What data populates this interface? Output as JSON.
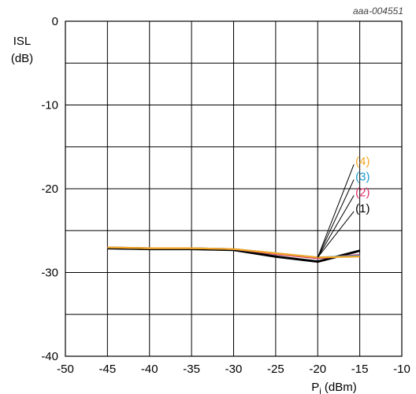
{
  "chart_data": {
    "type": "line",
    "figure_code": "aaa-004551",
    "ylabel_line1": "ISL",
    "ylabel_line2": "(dB)",
    "xlabel_main": "P",
    "xlabel_sub": "i",
    "xlabel_unit": " (dBm)",
    "xlim": [
      -50,
      -10
    ],
    "ylim": [
      -40,
      0
    ],
    "xticks": [
      -50,
      -45,
      -40,
      -35,
      -30,
      -25,
      -20,
      -15,
      -10
    ],
    "yticks": [
      0,
      -10,
      -20,
      -30,
      -40
    ],
    "x_grid_step": 5,
    "y_grid_step": 5,
    "grid": true,
    "series": [
      {
        "name": "(1)",
        "color": "#000000",
        "x": [
          -45,
          -40,
          -35,
          -30,
          -25,
          -20,
          -15
        ],
        "y": [
          -27.1,
          -27.2,
          -27.2,
          -27.3,
          -28.1,
          -28.7,
          -27.4
        ]
      },
      {
        "name": "(2)",
        "color": "#e0306a",
        "x": [
          -45,
          -40,
          -35,
          -30,
          -25,
          -20,
          -15
        ],
        "y": [
          -27.0,
          -27.1,
          -27.1,
          -27.2,
          -27.8,
          -28.3,
          -27.9
        ]
      },
      {
        "name": "(3)",
        "color": "#1a9ad0",
        "x": [
          -45,
          -40,
          -35,
          -30,
          -25,
          -20,
          -15
        ],
        "y": [
          -27.0,
          -27.1,
          -27.1,
          -27.2,
          -27.7,
          -28.2,
          -28.0
        ]
      },
      {
        "name": "(4)",
        "color": "#f5a623",
        "x": [
          -45,
          -40,
          -35,
          -30,
          -25,
          -20,
          -15
        ],
        "y": [
          -27.0,
          -27.1,
          -27.1,
          -27.2,
          -27.7,
          -28.2,
          -28.1
        ]
      }
    ],
    "annotation_origin": [
      -20,
      -28.2
    ],
    "annotation_targets": [
      {
        "series": "(1)",
        "x": -15.7,
        "y": -22.7
      },
      {
        "series": "(2)",
        "x": -15.7,
        "y": -20.8
      },
      {
        "series": "(3)",
        "x": -15.7,
        "y": -18.9
      },
      {
        "series": "(4)",
        "x": -15.7,
        "y": -17.1
      }
    ]
  }
}
